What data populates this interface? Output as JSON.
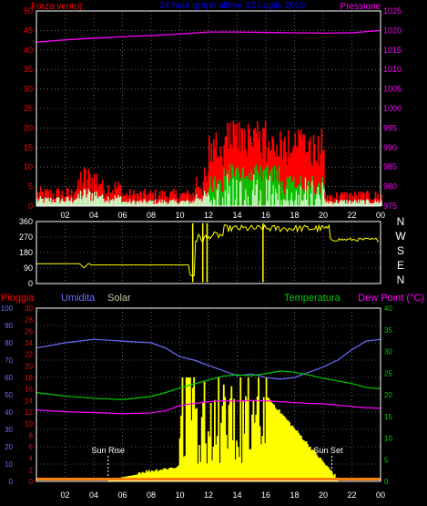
{
  "colors": {
    "background": "#000000",
    "frame": "#ffffff",
    "grid": "#a0a0a0",
    "wind_label": "#ff0000",
    "title": "#0000ff",
    "pressure": "#ff00ff",
    "direction": "#ffff00",
    "rain": "#ff0000",
    "humidity": "#6b6bff",
    "solar": "#ffff00",
    "temperature": "#00cc00",
    "dewpoint": "#ff00ff",
    "wind_avg": "#00c800",
    "wind_calm": "#c8ffc8",
    "tick_label": "#ffffff",
    "sun_marker": "#ffffff"
  },
  "header": {
    "wind_title": "Forza vento)",
    "main_title": "24 hour graph ultime 12 Luglio 2019",
    "pressure_title": "Pressione"
  },
  "x_ticks": [
    "02",
    "04",
    "06",
    "08",
    "10",
    "12",
    "14",
    "16",
    "18",
    "20",
    "22",
    "00"
  ],
  "wind_chart": {
    "type": "line",
    "left_axis": [
      "0",
      "5",
      "10",
      "15",
      "20",
      "25",
      "30",
      "35",
      "40",
      "45",
      "50"
    ],
    "right_axis": [
      "975",
      "980",
      "985",
      "990",
      "995",
      "1000",
      "1005",
      "1010",
      "1015",
      "1020",
      "1025"
    ],
    "ylim_wind": [
      0,
      50
    ],
    "ylim_pressure": [
      975,
      1025
    ],
    "pressure_series": [
      {
        "t": 0,
        "v": 1017.0
      },
      {
        "t": 2,
        "v": 1017.6
      },
      {
        "t": 4,
        "v": 1018.0
      },
      {
        "t": 6,
        "v": 1018.4
      },
      {
        "t": 8,
        "v": 1018.7
      },
      {
        "t": 10,
        "v": 1019.1
      },
      {
        "t": 12,
        "v": 1019.6
      },
      {
        "t": 14,
        "v": 1019.6
      },
      {
        "t": 16,
        "v": 1019.5
      },
      {
        "t": 18,
        "v": 1019.4
      },
      {
        "t": 20,
        "v": 1019.3
      },
      {
        "t": 22,
        "v": 1019.4
      },
      {
        "t": 24,
        "v": 1020.0
      }
    ]
  },
  "direction_chart": {
    "type": "line",
    "left_axis": [
      "0",
      "90",
      "180",
      "270",
      "360"
    ],
    "right_labels": [
      "N",
      "W",
      "S",
      "E",
      "N"
    ],
    "ylim": [
      0,
      360
    ]
  },
  "weather_chart": {
    "type": "line",
    "labels": {
      "rain": "Pioggia",
      "humidity": "Umidita",
      "solar": "Solar",
      "temperature": "Temperatura",
      "dewpoint": "Dew Point (°C)"
    },
    "humidity_axis": [
      "0",
      "10",
      "20",
      "30",
      "40",
      "50",
      "60",
      "70",
      "80",
      "90",
      "100"
    ],
    "rain_axis": [
      "0",
      "2",
      "4",
      "6",
      "8",
      "10",
      "12",
      "14",
      "16",
      "18",
      "20",
      "22",
      "24",
      "26",
      "28",
      "30"
    ],
    "temp_axis": [
      "0",
      "5",
      "10",
      "15",
      "20",
      "25",
      "30",
      "35",
      "40"
    ],
    "ylim_humidity": [
      0,
      100
    ],
    "ylim_temperature": [
      0,
      40
    ],
    "humidity_series": [
      {
        "t": 0,
        "v": 77
      },
      {
        "t": 2,
        "v": 80
      },
      {
        "t": 4,
        "v": 82
      },
      {
        "t": 6,
        "v": 81
      },
      {
        "t": 8,
        "v": 80
      },
      {
        "t": 9,
        "v": 77
      },
      {
        "t": 10,
        "v": 72
      },
      {
        "t": 11,
        "v": 70
      },
      {
        "t": 12,
        "v": 67
      },
      {
        "t": 13,
        "v": 64
      },
      {
        "t": 14,
        "v": 61
      },
      {
        "t": 15,
        "v": 62
      },
      {
        "t": 16,
        "v": 60
      },
      {
        "t": 17,
        "v": 59
      },
      {
        "t": 18,
        "v": 60
      },
      {
        "t": 19,
        "v": 63
      },
      {
        "t": 20,
        "v": 66
      },
      {
        "t": 21,
        "v": 70
      },
      {
        "t": 22,
        "v": 76
      },
      {
        "t": 23,
        "v": 81
      },
      {
        "t": 24,
        "v": 82
      }
    ],
    "temperature_series": [
      {
        "t": 0,
        "v": 20.5
      },
      {
        "t": 2,
        "v": 19.7
      },
      {
        "t": 4,
        "v": 19.2
      },
      {
        "t": 6,
        "v": 18.9
      },
      {
        "t": 8,
        "v": 19.6
      },
      {
        "t": 9,
        "v": 20.5
      },
      {
        "t": 10,
        "v": 21.6
      },
      {
        "t": 11,
        "v": 22.5
      },
      {
        "t": 12,
        "v": 23.4
      },
      {
        "t": 13,
        "v": 24.3
      },
      {
        "t": 14,
        "v": 24.6
      },
      {
        "t": 15,
        "v": 24.4
      },
      {
        "t": 16,
        "v": 24.9
      },
      {
        "t": 17,
        "v": 25.5
      },
      {
        "t": 18,
        "v": 25.2
      },
      {
        "t": 19,
        "v": 24.6
      },
      {
        "t": 20,
        "v": 23.8
      },
      {
        "t": 21,
        "v": 23.2
      },
      {
        "t": 22,
        "v": 22.6
      },
      {
        "t": 23,
        "v": 21.7
      },
      {
        "t": 24,
        "v": 21.4
      }
    ],
    "dewpoint_series": [
      {
        "t": 0,
        "v": 16.5
      },
      {
        "t": 2,
        "v": 16.1
      },
      {
        "t": 4,
        "v": 15.9
      },
      {
        "t": 6,
        "v": 15.6
      },
      {
        "t": 8,
        "v": 15.8
      },
      {
        "t": 9,
        "v": 16.3
      },
      {
        "t": 10,
        "v": 17.5
      },
      {
        "t": 11,
        "v": 18.0
      },
      {
        "t": 12,
        "v": 18.4
      },
      {
        "t": 13,
        "v": 18.6
      },
      {
        "t": 14,
        "v": 18.5
      },
      {
        "t": 15,
        "v": 18.7
      },
      {
        "t": 16,
        "v": 18.6
      },
      {
        "t": 17,
        "v": 18.4
      },
      {
        "t": 18,
        "v": 18.2
      },
      {
        "t": 19,
        "v": 18.0
      },
      {
        "t": 20,
        "v": 17.9
      },
      {
        "t": 21,
        "v": 17.6
      },
      {
        "t": 22,
        "v": 17.3
      },
      {
        "t": 23,
        "v": 17.0
      },
      {
        "t": 24,
        "v": 16.9
      }
    ],
    "sunrise_label": "Sun Rise",
    "sunset_label": "Sun Set",
    "sunrise_hour": 5,
    "sunset_hour": 20.6
  }
}
